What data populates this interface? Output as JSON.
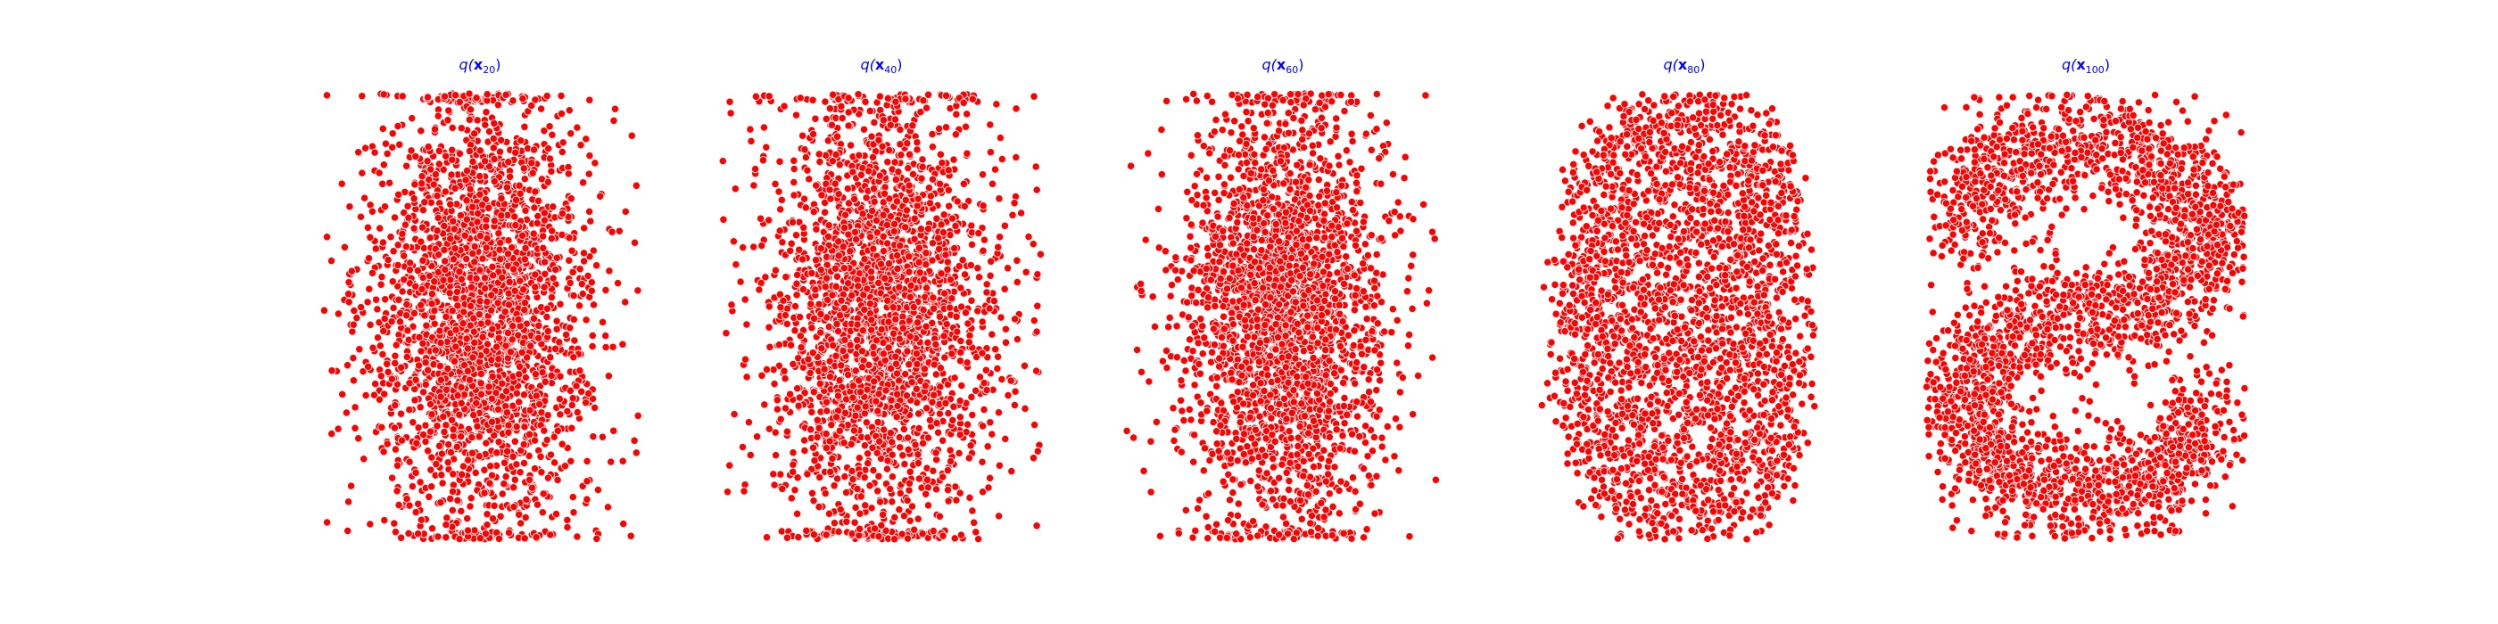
{
  "chart_data": [
    {
      "type": "scatter",
      "title": {
        "prefix": "q(",
        "symbol": "x",
        "subscript": "20",
        "suffix": ")"
      },
      "point_color": "#ff0000",
      "edge_color": "#ffffff",
      "axes_visible": false,
      "grid": false,
      "shape": "gaussian-blob",
      "sample_count": 2600,
      "sigma": [
        0.36,
        0.5
      ]
    },
    {
      "type": "scatter",
      "title": {
        "prefix": "q(",
        "symbol": "x",
        "subscript": "40",
        "suffix": ")"
      },
      "point_color": "#ff0000",
      "edge_color": "#ffffff",
      "axes_visible": false,
      "grid": false,
      "shape": "gaussian-blob",
      "sample_count": 2600,
      "sigma": [
        0.37,
        0.5
      ]
    },
    {
      "type": "scatter",
      "title": {
        "prefix": "q(",
        "symbol": "x",
        "subscript": "60",
        "suffix": ")"
      },
      "point_color": "#ff0000",
      "edge_color": "#ffffff",
      "axes_visible": false,
      "grid": false,
      "shape": "gaussian-blob",
      "sample_count": 2600,
      "sigma": [
        0.33,
        0.5
      ]
    },
    {
      "type": "scatter",
      "title": {
        "prefix": "q(",
        "symbol": "x",
        "subscript": "80",
        "suffix": ")"
      },
      "point_color": "#ff0000",
      "edge_color": "#ffffff",
      "axes_visible": false,
      "grid": false,
      "shape": "rounded-blob",
      "sample_count": 2600
    },
    {
      "type": "scatter",
      "title": {
        "prefix": "q(",
        "symbol": "x",
        "subscript": "100",
        "suffix": ")"
      },
      "point_color": "#ff0000",
      "edge_color": "#ffffff",
      "axes_visible": false,
      "grid": false,
      "shape": "s-curve",
      "sample_count": 2800
    }
  ]
}
